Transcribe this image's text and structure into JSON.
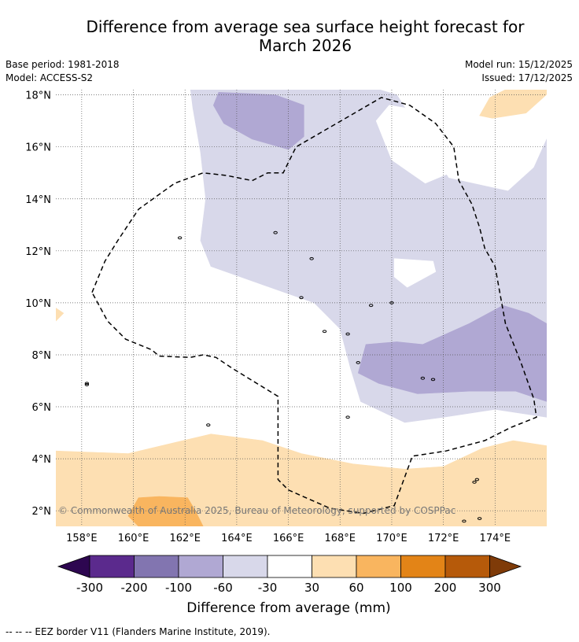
{
  "header": {
    "title_line1": "Difference from average sea surface height forecast for",
    "title_line2": "March 2026",
    "base_period": "Base period: 1981-2018",
    "model": "Model: ACCESS-S2",
    "model_run": "Model run: 15/12/2025",
    "issued": "Issued: 17/12/2025"
  },
  "colors": {
    "land_outline": "#000000",
    "neg_300_200": "#5b2a8d",
    "neg_200_100": "#8275b0",
    "neg_100_60": "#b0a8d3",
    "neg_60_30": "#d8d8ea",
    "neutral": "#ffffff",
    "pos_30_60": "#fddfb2",
    "pos_60_100": "#f9b55f",
    "pos_100_200": "#e38417",
    "pos_200_300": "#b65a0a",
    "extreme_low": "#2d0650",
    "extreme_high": "#7f3b08"
  },
  "chart_data": {
    "type": "heatmap",
    "title": "Difference from average sea surface height forecast for March 2026",
    "xaxis": {
      "range": [
        157,
        176
      ],
      "ticks": [
        158,
        160,
        162,
        164,
        166,
        168,
        170,
        172,
        174
      ],
      "tick_labels": [
        "158°E",
        "160°E",
        "162°E",
        "164°E",
        "166°E",
        "168°E",
        "170°E",
        "172°E",
        "174°E"
      ]
    },
    "yaxis": {
      "range": [
        1.4,
        18.2
      ],
      "ticks": [
        2,
        4,
        6,
        8,
        10,
        12,
        14,
        16,
        18
      ],
      "tick_labels": [
        "2°N",
        "4°N",
        "6°N",
        "8°N",
        "10°N",
        "12°N",
        "14°N",
        "16°N",
        "18°N"
      ]
    },
    "grid": true,
    "colorbar": {
      "label": "Difference from average (mm)",
      "tick_labels": [
        "-300",
        "-200",
        "-100",
        "-60",
        "-30",
        "30",
        "60",
        "100",
        "200",
        "300"
      ],
      "extend": "both"
    },
    "regions": [
      {
        "name": "-60 to -30 mm (central/north)",
        "band": "neg_60_30",
        "polygon": [
          [
            162.2,
            18.3
          ],
          [
            169.2,
            18.3
          ],
          [
            170.2,
            18.0
          ],
          [
            172.2,
            14.8
          ],
          [
            174.5,
            14.3
          ],
          [
            175.5,
            15.2
          ],
          [
            176,
            16.3
          ],
          [
            176,
            5.6
          ],
          [
            174,
            5.9
          ],
          [
            172,
            5.6
          ],
          [
            170.5,
            5.4
          ],
          [
            168.8,
            6.2
          ],
          [
            168.4,
            7.5
          ],
          [
            168.0,
            9.0
          ],
          [
            167.0,
            10.0
          ],
          [
            165.0,
            10.7
          ],
          [
            163,
            11.4
          ],
          [
            162.6,
            12.4
          ],
          [
            162.8,
            14.0
          ],
          [
            162.6,
            15.8
          ],
          [
            162.3,
            17.5
          ]
        ]
      },
      {
        "name": "-30 to 30 mm hole",
        "band": "neutral",
        "polygon": [
          [
            169.9,
            17.6
          ],
          [
            170.5,
            17.5
          ],
          [
            171.8,
            16.6
          ],
          [
            172.5,
            15.1
          ],
          [
            171.3,
            14.6
          ],
          [
            170.0,
            15.5
          ],
          [
            169.4,
            17.0
          ]
        ]
      },
      {
        "name": "-30 to 30 mm hole (11N)",
        "band": "neutral",
        "polygon": [
          [
            170.1,
            11.7
          ],
          [
            171.6,
            11.6
          ],
          [
            171.7,
            11.2
          ],
          [
            170.6,
            10.6
          ],
          [
            170.1,
            11.0
          ]
        ]
      },
      {
        "name": "-100 to -60 mm (north)",
        "band": "neg_100_60",
        "polygon": [
          [
            163.3,
            18.1
          ],
          [
            165.5,
            18.0
          ],
          [
            166.6,
            17.6
          ],
          [
            166.6,
            16.4
          ],
          [
            166.0,
            15.9
          ],
          [
            164.6,
            16.3
          ],
          [
            163.5,
            16.9
          ],
          [
            163.1,
            17.6
          ]
        ]
      },
      {
        "name": "-100 to -60 mm (east)",
        "band": "neg_100_60",
        "polygon": [
          [
            171.2,
            8.4
          ],
          [
            173.0,
            9.2
          ],
          [
            174.3,
            9.9
          ],
          [
            175.3,
            9.6
          ],
          [
            176,
            9.2
          ],
          [
            176,
            6.2
          ],
          [
            174.8,
            6.6
          ],
          [
            173.0,
            6.6
          ],
          [
            171.0,
            6.5
          ],
          [
            169.5,
            6.9
          ],
          [
            168.7,
            7.3
          ],
          [
            169.0,
            8.4
          ],
          [
            170.2,
            8.5
          ]
        ]
      },
      {
        "name": "30 to 60 mm (south)",
        "band": "pos_30_60",
        "polygon": [
          [
            157,
            4.3
          ],
          [
            159.8,
            4.2
          ],
          [
            161.5,
            4.6
          ],
          [
            163,
            4.95
          ],
          [
            165,
            4.7
          ],
          [
            166.5,
            4.2
          ],
          [
            168.5,
            3.8
          ],
          [
            170.5,
            3.6
          ],
          [
            172,
            3.7
          ],
          [
            173.5,
            4.4
          ],
          [
            174.7,
            4.7
          ],
          [
            176,
            4.5
          ],
          [
            176,
            1.4
          ],
          [
            157,
            1.4
          ]
        ]
      },
      {
        "name": "30 to 60 mm (NE corner)",
        "band": "pos_30_60",
        "polygon": [
          [
            174.4,
            18.2
          ],
          [
            176.2,
            18.2
          ],
          [
            175.2,
            17.3
          ],
          [
            173.9,
            17.1
          ],
          [
            173.4,
            17.2
          ],
          [
            173.8,
            17.9
          ]
        ]
      },
      {
        "name": "30 to 60 mm (W edge)",
        "band": "pos_30_60",
        "polygon": [
          [
            157,
            9.8
          ],
          [
            157.3,
            9.6
          ],
          [
            157,
            9.3
          ]
        ]
      },
      {
        "name": "60 to 100 mm (SW)",
        "band": "pos_60_100",
        "polygon": [
          [
            160.2,
            1.4
          ],
          [
            162.7,
            1.4
          ],
          [
            162.4,
            2.0
          ],
          [
            162.1,
            2.5
          ],
          [
            161.0,
            2.55
          ],
          [
            160.2,
            2.5
          ],
          [
            159.8,
            1.8
          ]
        ]
      }
    ],
    "eez_border": [
      [
        158.4,
        10.4
      ],
      [
        158.9,
        11.6
      ],
      [
        159.4,
        12.4
      ],
      [
        160.2,
        13.6
      ],
      [
        161.6,
        14.6
      ],
      [
        162.7,
        15.0
      ],
      [
        163.6,
        14.9
      ],
      [
        164.6,
        14.7
      ],
      [
        165.2,
        15.0
      ],
      [
        165.8,
        15.0
      ],
      [
        166.3,
        16.0
      ],
      [
        169.6,
        17.9
      ],
      [
        170.7,
        17.6
      ],
      [
        171.7,
        16.9
      ],
      [
        172.4,
        16.0
      ],
      [
        172.6,
        14.7
      ],
      [
        173.1,
        13.8
      ],
      [
        173.4,
        12.9
      ],
      [
        173.6,
        12.1
      ],
      [
        174.0,
        11.4
      ],
      [
        174.4,
        9.2
      ],
      [
        175.0,
        7.7
      ],
      [
        175.5,
        6.3
      ],
      [
        175.6,
        5.6
      ],
      [
        174.6,
        5.2
      ],
      [
        173.6,
        4.7
      ],
      [
        172.1,
        4.3
      ],
      [
        170.8,
        4.1
      ],
      [
        170.1,
        2.2
      ],
      [
        168.9,
        1.9
      ],
      [
        167.6,
        2.1
      ],
      [
        166.0,
        2.8
      ],
      [
        165.6,
        3.2
      ],
      [
        165.6,
        6.4
      ],
      [
        163.8,
        7.5
      ],
      [
        163.2,
        7.9
      ],
      [
        162.7,
        8.0
      ],
      [
        162.2,
        7.9
      ],
      [
        161.0,
        7.95
      ],
      [
        160.7,
        8.2
      ],
      [
        159.7,
        8.6
      ],
      [
        159.0,
        9.3
      ],
      [
        158.4,
        10.4
      ]
    ]
  },
  "map": {
    "copyright": "© Commonwealth of Australia 2025, Bureau of Meteorology, supported by COSPPac"
  },
  "footer": {
    "legend_note": "--  --  -- EEZ border V11 (Flanders Marine Institute, 2019)."
  }
}
